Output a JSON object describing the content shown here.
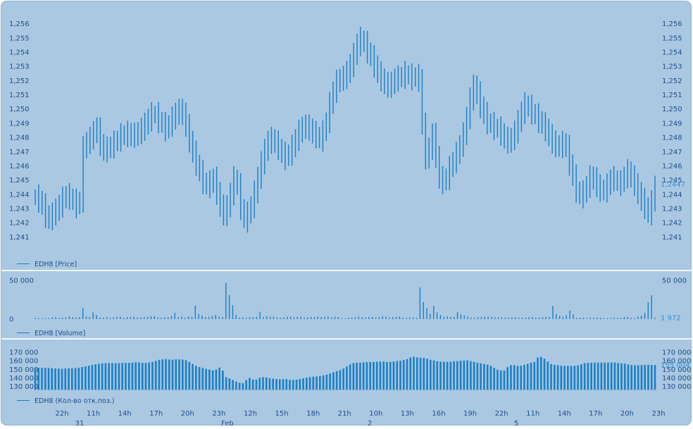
{
  "colors": {
    "background": "#abc8e2",
    "frame": "#8fb0cf",
    "separator": "#f2f7fc",
    "series": "#1b7fc4",
    "axis_text": "#1e4e8c",
    "last_value_text": "#2f8fd6"
  },
  "chart_data": [
    {
      "type": "bar",
      "subtype": "ohlc-high-low",
      "title": "",
      "legend": "EDH8 [Price]",
      "legend_position": "bottom-left",
      "ylim": [
        1.2405,
        1.2565
      ],
      "y_ticks": [
        1.241,
        1.242,
        1.243,
        1.244,
        1.245,
        1.246,
        1.247,
        1.248,
        1.249,
        1.25,
        1.251,
        1.252,
        1.253,
        1.254,
        1.255,
        1.256
      ],
      "y_tick_labels": [
        "1,241",
        "1,242",
        "1,243",
        "1,244",
        "1,245",
        "1,246",
        "1,247",
        "1,248",
        "1,249",
        "1,250",
        "1,251",
        "1,252",
        "1,253",
        "1,254",
        "1,255",
        "1,256"
      ],
      "last_value": "1,2447",
      "grid": false,
      "series": [
        {
          "name": "EDH8 [Price]",
          "values": [
            1.2438,
            1.2436,
            1.2432,
            1.2425,
            1.2423,
            1.2426,
            1.2429,
            1.2432,
            1.2437,
            1.2439,
            1.2438,
            1.2435,
            1.2432,
            1.2436,
            1.2472,
            1.2477,
            1.2479,
            1.2484,
            1.2486,
            1.2475,
            1.2471,
            1.2472,
            1.2474,
            1.2476,
            1.2479,
            1.2481,
            1.2482,
            1.2483,
            1.2481,
            1.2482,
            1.2483,
            1.2486,
            1.2489,
            1.2493,
            1.2496,
            1.2496,
            1.2492,
            1.2489,
            1.2486,
            1.2489,
            1.2493,
            1.2497,
            1.2499,
            1.2497,
            1.2488,
            1.2478,
            1.2469,
            1.2462,
            1.2455,
            1.2449,
            1.2446,
            1.2448,
            1.2451,
            1.2441,
            1.2432,
            1.2426,
            1.2431,
            1.2441,
            1.2451,
            1.2446,
            1.2431,
            1.2422,
            1.2426,
            1.2432,
            1.2441,
            1.2452,
            1.2462,
            1.2471,
            1.2477,
            1.2479,
            1.2476,
            1.2473,
            1.2468,
            1.2466,
            1.2469,
            1.2473,
            1.2479,
            1.2484,
            1.2487,
            1.2488,
            1.2486,
            1.2483,
            1.2481,
            1.2479,
            1.2483,
            1.2492,
            1.2503,
            1.2513,
            1.2519,
            1.2521,
            1.2522,
            1.2526,
            1.2531,
            1.2538,
            1.2546,
            1.2549,
            1.2546,
            1.2541,
            1.2536,
            1.2531,
            1.2525,
            1.2521,
            1.2518,
            1.2516,
            1.2518,
            1.2521,
            1.2522,
            1.2523,
            1.2525,
            1.2523,
            1.2522,
            1.2523,
            1.2521,
            1.2489,
            1.2466,
            1.2472,
            1.2482,
            1.2467,
            1.2451,
            1.2449,
            1.2452,
            1.2458,
            1.2464,
            1.2468,
            1.2475,
            1.2482,
            1.2494,
            1.2507,
            1.2516,
            1.2511,
            1.2502,
            1.2496,
            1.2491,
            1.2489,
            1.2487,
            1.2486,
            1.2483,
            1.2479,
            1.2477,
            1.2479,
            1.2484,
            1.2491,
            1.2498,
            1.2503,
            1.2501,
            1.2498,
            1.2495,
            1.2492,
            1.2489,
            1.2486,
            1.2481,
            1.2477,
            1.2474,
            1.2474,
            1.2476,
            1.2473,
            1.2462,
            1.2452,
            1.2443,
            1.2439,
            1.2441,
            1.2446,
            1.2452,
            1.2451,
            1.2446,
            1.2443,
            1.2443,
            1.2446,
            1.2451,
            1.2451,
            1.2448,
            1.2448,
            1.2453,
            1.2456,
            1.2452,
            1.2447,
            1.2441,
            1.2436,
            1.2431,
            1.2427,
            1.2434,
            1.2447
          ]
        }
      ]
    },
    {
      "type": "bar",
      "title": "",
      "legend": "EDH8 [Volume]",
      "legend_position": "bottom-left",
      "ylim": [
        0,
        52000
      ],
      "y_ticks": [
        0,
        50000
      ],
      "y_tick_labels": [
        "0",
        "50 000"
      ],
      "right_tick_labels": [
        "50 000"
      ],
      "last_value": "1 972",
      "grid": false,
      "series": [
        {
          "name": "EDH8 [Volume]",
          "values": [
            1700,
            1200,
            900,
            1100,
            1600,
            2200,
            2600,
            1300,
            1800,
            2400,
            3600,
            2200,
            2100,
            2700,
            14800,
            3400,
            2600,
            8600,
            5200,
            2300,
            1900,
            2600,
            1700,
            2400,
            3000,
            3200,
            1800,
            2600,
            2900,
            3300,
            2100,
            2200,
            2800,
            3100,
            3900,
            4100,
            2400,
            1700,
            2300,
            2500,
            3900,
            8100,
            2400,
            3200,
            1800,
            3600,
            2700,
            17500,
            6700,
            4600,
            2700,
            2900,
            3800,
            5200,
            3100,
            2800,
            47000,
            31000,
            18000,
            5600,
            1900,
            2400,
            1800,
            2400,
            2600,
            3100,
            9500,
            2800,
            3600,
            2900,
            3400,
            2400,
            1800,
            2200,
            2900,
            3300,
            2500,
            2800,
            3100,
            1900,
            2200,
            2800,
            2600,
            3400,
            2700,
            2900,
            3700,
            2400,
            3200,
            2800,
            1200,
            900,
            1900,
            2100,
            2400,
            3100,
            2600,
            2300,
            2800,
            2900,
            2200,
            2600,
            3800,
            3100,
            2200,
            2600,
            2900,
            3400,
            1700,
            1600,
            2300,
            2100,
            1600,
            41000,
            22000,
            14000,
            7000,
            17000,
            8600,
            5200,
            2900,
            3600,
            2700,
            2800,
            8900,
            6200,
            4700,
            3400,
            2100,
            1800,
            2400,
            2600,
            2900,
            3100,
            2800,
            2300,
            2500,
            2200,
            1900,
            2200,
            2500,
            2700,
            2100,
            1800,
            1900,
            2400,
            2600,
            1900,
            2200,
            2500,
            2800,
            2600,
            17000,
            6700,
            4300,
            3200,
            4900,
            11000,
            6200,
            1400,
            1700,
            1900,
            1300,
            1600,
            1700,
            2100,
            1800,
            1400,
            1300,
            1600,
            1900,
            1700,
            1600,
            2500,
            2900,
            1600,
            1300,
            3100,
            4400,
            7800,
            22000,
            31000,
            1972
          ]
        }
      ]
    },
    {
      "type": "bar",
      "title": "",
      "legend": "EDH8 (Кол-во отк.поз.)",
      "legend_position": "bottom-left",
      "ylim": [
        126000,
        174000
      ],
      "y_ticks": [
        130000,
        140000,
        150000,
        160000,
        170000
      ],
      "y_tick_labels": [
        "130 000",
        "140 000",
        "150 000",
        "160 000",
        "170 000"
      ],
      "right_tick_labels": [
        "130 000",
        "140 000",
        "150 000",
        "160 000",
        "170 000"
      ],
      "last_value": "155 004",
      "grid": false,
      "x_tick_labels": [
        "22h",
        "11h",
        "14h",
        "17h",
        "20h",
        "23h",
        "12h",
        "15h",
        "18h",
        "21h",
        "10h",
        "13h",
        "16h",
        "19h",
        "22h",
        "11h",
        "14h",
        "17h",
        "20h",
        "23h"
      ],
      "x_date_labels": [
        "31",
        "Feb",
        "2",
        "5"
      ],
      "series": [
        {
          "name": "EDH8 (Кол-во отк.поз.)",
          "values": [
            151500,
            151800,
            151700,
            151900,
            151600,
            151400,
            151000,
            150800,
            150600,
            150900,
            151100,
            151200,
            151400,
            151700,
            152600,
            153400,
            154200,
            155100,
            155800,
            156400,
            156800,
            157100,
            157300,
            157300,
            157000,
            157200,
            157500,
            157600,
            157400,
            157800,
            158100,
            158000,
            157600,
            157300,
            157800,
            158600,
            159800,
            161000,
            161600,
            161900,
            161400,
            161200,
            161700,
            161500,
            161300,
            160600,
            158600,
            156200,
            154100,
            152600,
            151400,
            150600,
            149700,
            148700,
            149700,
            151900,
            148500,
            140900,
            139400,
            137600,
            135700,
            134300,
            133900,
            137400,
            140000,
            138100,
            138000,
            140200,
            140800,
            140500,
            139700,
            139100,
            138600,
            138300,
            138500,
            138500,
            137600,
            137700,
            137900,
            138700,
            139500,
            140300,
            140900,
            141400,
            141600,
            142100,
            142900,
            143900,
            145100,
            146500,
            147800,
            149000,
            150800,
            153200,
            155600,
            157200,
            157800,
            157700,
            158000,
            158300,
            158500,
            158400,
            158800,
            159000,
            159100,
            158500,
            158600,
            159100,
            159600,
            160000,
            160800,
            161800,
            163800,
            164600,
            163900,
            163600,
            163200,
            162300,
            161100,
            160300,
            159400,
            158900,
            158800,
            158700,
            158800,
            159400,
            159600,
            160000,
            160300,
            160400,
            159600,
            158800,
            157700,
            156900,
            156200,
            155500,
            154100,
            151800,
            149600,
            148700,
            148600,
            152500,
            154800,
            154700,
            153900,
            154200,
            155200,
            156400,
            157700,
            158600,
            163700,
            164500,
            162300,
            159000,
            156100,
            155300,
            154800,
            154200,
            154000,
            154100,
            153900,
            154000,
            154600,
            155800,
            157200,
            157500,
            157600,
            157800,
            157700,
            157800,
            157800,
            157700,
            157900,
            157900,
            157300,
            156900,
            156600,
            155700,
            155100,
            154700,
            154700,
            154900,
            155100,
            155300,
            155000,
            155004
          ]
        }
      ]
    }
  ]
}
